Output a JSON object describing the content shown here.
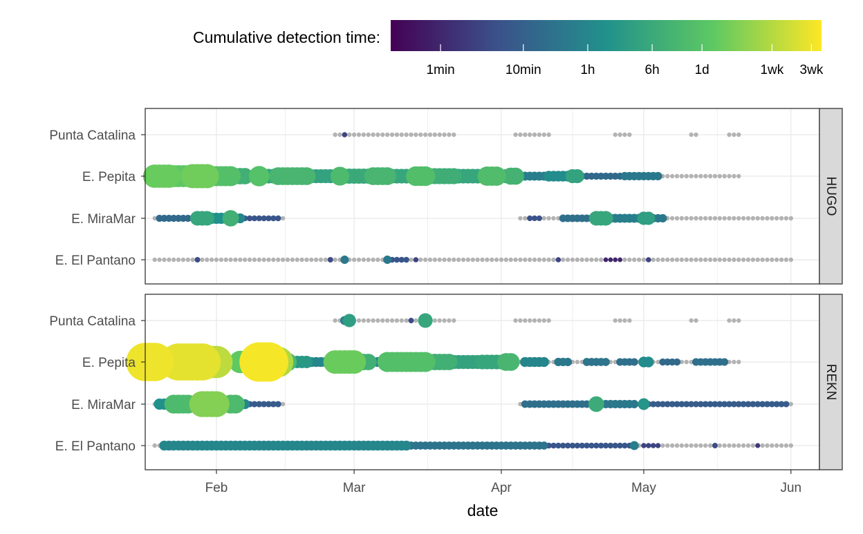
{
  "chart_data": {
    "type": "scatter",
    "xlabel": "date",
    "x_axis": {
      "type": "date",
      "range": [
        "2024-01-17",
        "2024-06-07"
      ],
      "ticks": [
        {
          "date": "2024-02-01",
          "label": "Feb"
        },
        {
          "date": "2024-03-01",
          "label": "Mar"
        },
        {
          "date": "2024-04-01",
          "label": "Apr"
        },
        {
          "date": "2024-05-01",
          "label": "May"
        },
        {
          "date": "2024-06-01",
          "label": "Jun"
        }
      ]
    },
    "y_categories": [
      "Punta Catalina",
      "E. Pepita",
      "E. MiraMar",
      "E. El Pantano"
    ],
    "grid": true,
    "legend": {
      "title": "Cumulative detection time:",
      "position": "top",
      "scale": "log",
      "palette": "viridis",
      "palette_colors": [
        "#440154",
        "#3b528b",
        "#21918c",
        "#5ec962",
        "#fde725"
      ],
      "tick_labels": [
        {
          "label": "1min",
          "minutes": 1
        },
        {
          "label": "10min",
          "minutes": 10
        },
        {
          "label": "1h",
          "minutes": 60
        },
        {
          "label": "6h",
          "minutes": 360
        },
        {
          "label": "1d",
          "minutes": 1440
        },
        {
          "label": "1wk",
          "minutes": 10080
        },
        {
          "label": "3wk",
          "minutes": 30240
        }
      ],
      "range_minutes": [
        0.25,
        40000
      ]
    },
    "no_detection_color": "#b3b3b3",
    "panels": [
      {
        "name": "HUGO",
        "series": [
          {
            "site": "Punta Catalina",
            "points": [
              {
                "start": "2024-02-26",
                "end": "2024-03-22",
                "minutes": 0
              },
              {
                "start": "2024-02-28",
                "end": "2024-02-28",
                "minutes": 3
              },
              {
                "start": "2024-04-04",
                "end": "2024-04-11",
                "minutes": 0
              },
              {
                "start": "2024-04-25",
                "end": "2024-04-28",
                "minutes": 0
              },
              {
                "start": "2024-05-11",
                "end": "2024-05-12",
                "minutes": 0
              },
              {
                "start": "2024-05-19",
                "end": "2024-05-21",
                "minutes": 0
              }
            ]
          },
          {
            "site": "E. Pepita",
            "points": [
              {
                "start": "2024-01-19",
                "end": "2024-01-22",
                "minutes": 2400
              },
              {
                "start": "2024-01-23",
                "end": "2024-01-26",
                "minutes": 1800
              },
              {
                "start": "2024-01-27",
                "end": "2024-01-30",
                "minutes": 2800
              },
              {
                "start": "2024-01-31",
                "end": "2024-02-04",
                "minutes": 1200
              },
              {
                "start": "2024-02-05",
                "end": "2024-02-07",
                "minutes": 500
              },
              {
                "start": "2024-02-08",
                "end": "2024-02-09",
                "minutes": 90
              },
              {
                "start": "2024-02-10",
                "end": "2024-02-10",
                "minutes": 1300
              },
              {
                "start": "2024-02-11",
                "end": "2024-02-13",
                "minutes": 300
              },
              {
                "start": "2024-02-14",
                "end": "2024-02-20",
                "minutes": 700
              },
              {
                "start": "2024-02-21",
                "end": "2024-02-26",
                "minutes": 250
              },
              {
                "start": "2024-02-27",
                "end": "2024-02-27",
                "minutes": 900
              },
              {
                "start": "2024-02-28",
                "end": "2024-03-04",
                "minutes": 350
              },
              {
                "start": "2024-03-05",
                "end": "2024-03-08",
                "minutes": 700
              },
              {
                "start": "2024-03-09",
                "end": "2024-03-13",
                "minutes": 300
              },
              {
                "start": "2024-03-14",
                "end": "2024-03-16",
                "minutes": 1100
              },
              {
                "start": "2024-03-17",
                "end": "2024-03-22",
                "minutes": 450
              },
              {
                "start": "2024-03-23",
                "end": "2024-03-28",
                "minutes": 300
              },
              {
                "start": "2024-03-29",
                "end": "2024-03-31",
                "minutes": 1000
              },
              {
                "start": "2024-04-01",
                "end": "2024-04-02",
                "minutes": 250
              },
              {
                "start": "2024-04-03",
                "end": "2024-04-04",
                "minutes": 600
              },
              {
                "start": "2024-04-05",
                "end": "2024-04-10",
                "minutes": 40
              },
              {
                "start": "2024-04-11",
                "end": "2024-04-15",
                "minutes": 80
              },
              {
                "start": "2024-04-16",
                "end": "2024-04-17",
                "minutes": 250
              },
              {
                "start": "2024-04-18",
                "end": "2024-04-26",
                "minutes": 15
              },
              {
                "start": "2024-04-27",
                "end": "2024-05-04",
                "minutes": 30
              },
              {
                "start": "2024-05-05",
                "end": "2024-05-21",
                "minutes": 0
              }
            ]
          },
          {
            "site": "E. MiraMar",
            "points": [
              {
                "start": "2024-01-19",
                "end": "2024-01-19",
                "minutes": 0
              },
              {
                "start": "2024-01-20",
                "end": "2024-01-27",
                "minutes": 15
              },
              {
                "start": "2024-01-28",
                "end": "2024-01-30",
                "minutes": 300
              },
              {
                "start": "2024-01-31",
                "end": "2024-02-03",
                "minutes": 100
              },
              {
                "start": "2024-02-04",
                "end": "2024-02-04",
                "minutes": 500
              },
              {
                "start": "2024-02-05",
                "end": "2024-02-06",
                "minutes": 60
              },
              {
                "start": "2024-02-07",
                "end": "2024-02-14",
                "minutes": 6
              },
              {
                "start": "2024-02-15",
                "end": "2024-02-15",
                "minutes": 0
              },
              {
                "start": "2024-04-05",
                "end": "2024-04-06",
                "minutes": 0
              },
              {
                "start": "2024-04-07",
                "end": "2024-04-09",
                "minutes": 5
              },
              {
                "start": "2024-04-10",
                "end": "2024-04-13",
                "minutes": 0
              },
              {
                "start": "2024-04-14",
                "end": "2024-04-20",
                "minutes": 20
              },
              {
                "start": "2024-04-21",
                "end": "2024-04-23",
                "minutes": 300
              },
              {
                "start": "2024-04-24",
                "end": "2024-04-30",
                "minutes": 40
              },
              {
                "start": "2024-05-01",
                "end": "2024-05-02",
                "minutes": 200
              },
              {
                "start": "2024-05-03",
                "end": "2024-05-05",
                "minutes": 30
              },
              {
                "start": "2024-05-06",
                "end": "2024-06-01",
                "minutes": 0
              }
            ]
          },
          {
            "site": "E. El Pantano",
            "points": [
              {
                "start": "2024-01-19",
                "end": "2024-06-01",
                "minutes": 0
              },
              {
                "start": "2024-01-28",
                "end": "2024-01-28",
                "minutes": 4
              },
              {
                "start": "2024-02-25",
                "end": "2024-02-25",
                "minutes": 4
              },
              {
                "start": "2024-02-28",
                "end": "2024-02-28",
                "minutes": 30
              },
              {
                "start": "2024-03-08",
                "end": "2024-03-08",
                "minutes": 30
              },
              {
                "start": "2024-03-09",
                "end": "2024-03-12",
                "minutes": 6
              },
              {
                "start": "2024-03-14",
                "end": "2024-03-14",
                "minutes": 3
              },
              {
                "start": "2024-04-13",
                "end": "2024-04-13",
                "minutes": 3
              },
              {
                "start": "2024-04-23",
                "end": "2024-04-26",
                "minutes": 1
              },
              {
                "start": "2024-05-02",
                "end": "2024-05-02",
                "minutes": 3
              }
            ]
          }
        ]
      },
      {
        "name": "REKN",
        "series": [
          {
            "site": "Punta Catalina",
            "points": [
              {
                "start": "2024-02-26",
                "end": "2024-03-22",
                "minutes": 0
              },
              {
                "start": "2024-02-28",
                "end": "2024-02-28",
                "minutes": 40
              },
              {
                "start": "2024-02-29",
                "end": "2024-02-29",
                "minutes": 200
              },
              {
                "start": "2024-03-13",
                "end": "2024-03-13",
                "minutes": 4
              },
              {
                "start": "2024-03-16",
                "end": "2024-03-16",
                "minutes": 300
              },
              {
                "start": "2024-04-04",
                "end": "2024-04-11",
                "minutes": 0
              },
              {
                "start": "2024-04-25",
                "end": "2024-04-28",
                "minutes": 0
              },
              {
                "start": "2024-05-11",
                "end": "2024-05-12",
                "minutes": 0
              },
              {
                "start": "2024-05-19",
                "end": "2024-05-21",
                "minutes": 0
              }
            ]
          },
          {
            "site": "E. Pepita",
            "points": [
              {
                "start": "2024-01-17",
                "end": "2024-01-19",
                "minutes": 30000
              },
              {
                "start": "2024-01-20",
                "end": "2024-01-21",
                "minutes": 3000
              },
              {
                "start": "2024-01-22",
                "end": "2024-01-22",
                "minutes": 500
              },
              {
                "start": "2024-01-23",
                "end": "2024-01-23",
                "minutes": 2000
              },
              {
                "start": "2024-01-24",
                "end": "2024-01-29",
                "minutes": 25000
              },
              {
                "start": "2024-01-30",
                "end": "2024-02-01",
                "minutes": 12000
              },
              {
                "start": "2024-02-02",
                "end": "2024-02-05",
                "minutes": 200
              },
              {
                "start": "2024-02-06",
                "end": "2024-02-09",
                "minutes": 2000
              },
              {
                "start": "2024-02-10",
                "end": "2024-02-12",
                "minutes": 35000
              },
              {
                "start": "2024-02-13",
                "end": "2024-02-14",
                "minutes": 9000
              },
              {
                "start": "2024-02-15",
                "end": "2024-02-16",
                "minutes": 800
              },
              {
                "start": "2024-02-17",
                "end": "2024-02-20",
                "minutes": 150
              },
              {
                "start": "2024-02-21",
                "end": "2024-02-25",
                "minutes": 60
              },
              {
                "start": "2024-02-26",
                "end": "2024-03-01",
                "minutes": 2500
              },
              {
                "start": "2024-03-02",
                "end": "2024-03-04",
                "minutes": 500
              },
              {
                "start": "2024-03-05",
                "end": "2024-03-07",
                "minutes": 60
              },
              {
                "start": "2024-03-08",
                "end": "2024-03-16",
                "minutes": 1200
              },
              {
                "start": "2024-03-17",
                "end": "2024-03-21",
                "minutes": 500
              },
              {
                "start": "2024-03-22",
                "end": "2024-03-27",
                "minutes": 250
              },
              {
                "start": "2024-03-28",
                "end": "2024-04-01",
                "minutes": 300
              },
              {
                "start": "2024-04-02",
                "end": "2024-04-03",
                "minutes": 700
              },
              {
                "start": "2024-04-04",
                "end": "2024-05-21",
                "minutes": 0
              },
              {
                "start": "2024-04-06",
                "end": "2024-04-10",
                "minutes": 60
              },
              {
                "start": "2024-04-13",
                "end": "2024-04-15",
                "minutes": 30
              },
              {
                "start": "2024-04-19",
                "end": "2024-04-23",
                "minutes": 25
              },
              {
                "start": "2024-04-26",
                "end": "2024-04-29",
                "minutes": 20
              },
              {
                "start": "2024-05-01",
                "end": "2024-05-02",
                "minutes": 80
              },
              {
                "start": "2024-05-05",
                "end": "2024-05-08",
                "minutes": 15
              },
              {
                "start": "2024-05-12",
                "end": "2024-05-18",
                "minutes": 20
              }
            ]
          },
          {
            "site": "E. MiraMar",
            "points": [
              {
                "start": "2024-01-19",
                "end": "2024-01-19",
                "minutes": 0
              },
              {
                "start": "2024-01-20",
                "end": "2024-01-22",
                "minutes": 100
              },
              {
                "start": "2024-01-23",
                "end": "2024-01-26",
                "minutes": 900
              },
              {
                "start": "2024-01-27",
                "end": "2024-01-28",
                "minutes": 200
              },
              {
                "start": "2024-01-29",
                "end": "2024-02-01",
                "minutes": 4000
              },
              {
                "start": "2024-02-02",
                "end": "2024-02-03",
                "minutes": 400
              },
              {
                "start": "2024-02-04",
                "end": "2024-02-05",
                "minutes": 900
              },
              {
                "start": "2024-02-06",
                "end": "2024-02-07",
                "minutes": 60
              },
              {
                "start": "2024-02-08",
                "end": "2024-02-14",
                "minutes": 8
              },
              {
                "start": "2024-02-15",
                "end": "2024-02-15",
                "minutes": 0
              },
              {
                "start": "2024-04-05",
                "end": "2024-06-01",
                "minutes": 0
              },
              {
                "start": "2024-04-06",
                "end": "2024-04-20",
                "minutes": 20
              },
              {
                "start": "2024-04-21",
                "end": "2024-04-21",
                "minutes": 400
              },
              {
                "start": "2024-04-22",
                "end": "2024-04-29",
                "minutes": 30
              },
              {
                "start": "2024-05-01",
                "end": "2024-05-01",
                "minutes": 120
              },
              {
                "start": "2024-05-02",
                "end": "2024-05-31",
                "minutes": 8
              }
            ]
          },
          {
            "site": "E. El Pantano",
            "points": [
              {
                "start": "2024-01-19",
                "end": "2024-06-01",
                "minutes": 0
              },
              {
                "start": "2024-01-21",
                "end": "2024-03-12",
                "minutes": 60
              },
              {
                "start": "2024-03-13",
                "end": "2024-04-10",
                "minutes": 25
              },
              {
                "start": "2024-04-11",
                "end": "2024-04-28",
                "minutes": 6
              },
              {
                "start": "2024-04-29",
                "end": "2024-04-29",
                "minutes": 40
              },
              {
                "start": "2024-05-01",
                "end": "2024-05-04",
                "minutes": 3
              },
              {
                "start": "2024-05-16",
                "end": "2024-05-16",
                "minutes": 4
              },
              {
                "start": "2024-05-25",
                "end": "2024-05-25",
                "minutes": 2
              }
            ]
          }
        ]
      }
    ]
  }
}
